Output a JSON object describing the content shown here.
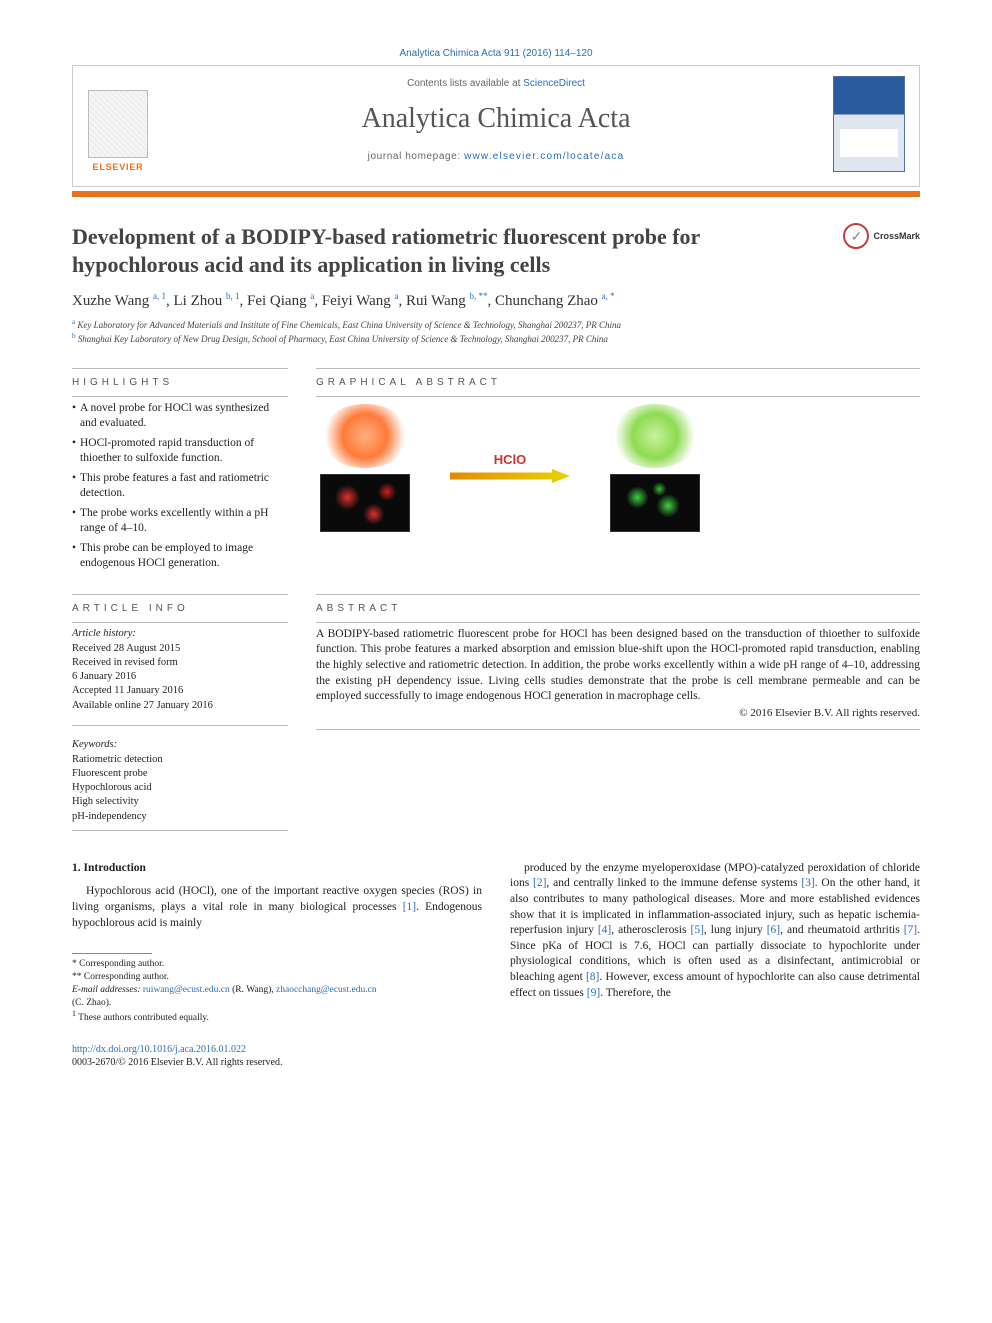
{
  "header": {
    "citation": "Analytica Chimica Acta 911 (2016) 114–120",
    "contents_prefix": "Contents lists available at ",
    "contents_link": "ScienceDirect",
    "journal_name": "Analytica Chimica Acta",
    "homepage_prefix": "journal homepage: ",
    "homepage_link": "www.elsevier.com/locate/aca",
    "elsevier_word": "ELSEVIER",
    "crossmark": "CrossMark"
  },
  "article": {
    "title": "Development of a BODIPY-based ratiometric fluorescent probe for hypochlorous acid and its application in living cells",
    "authors_html": "Xuzhe Wang <span class='sup'>a, 1</span>, Li Zhou <span class='sup'>b, 1</span>, Fei Qiang <span class='sup'>a</span>, Feiyi Wang <span class='sup'>a</span>, Rui Wang <span class='sup'>b, **</span>, Chunchang Zhao <span class='sup'>a, *</span>",
    "affiliations": {
      "a": "Key Laboratory for Advanced Materials and Institute of Fine Chemicals, East China University of Science & Technology, Shanghai 200237, PR China",
      "b": "Shanghai Key Laboratory of New Drug Design, School of Pharmacy, East China University of Science & Technology, Shanghai 200237, PR China"
    }
  },
  "headings": {
    "highlights": "HIGHLIGHTS",
    "graphical": "GRAPHICAL ABSTRACT",
    "article_info": "ARTICLE INFO",
    "abstract": "ABSTRACT",
    "intro": "1. Introduction"
  },
  "highlights": [
    "A novel probe for HOCl was synthesized and evaluated.",
    "HOCl-promoted rapid transduction of thioether to sulfoxide function.",
    "This probe features a fast and ratiometric detection.",
    "The probe works excellently within a pH range of 4–10.",
    "This probe can be employed to image endogenous HOCl generation."
  ],
  "graphical_abstract": {
    "reaction_label": "HClO",
    "left_color": "#ff7a3a",
    "right_color": "#8edb52",
    "arrow_gradient_from": "#e38a00",
    "arrow_gradient_to": "#e8d400"
  },
  "article_info": {
    "history_head": "Article history:",
    "received": "Received 28 August 2015",
    "revised": "Received in revised form",
    "revised_date": "6 January 2016",
    "accepted": "Accepted 11 January 2016",
    "online": "Available online 27 January 2016",
    "keywords_head": "Keywords:",
    "keywords": [
      "Ratiometric detection",
      "Fluorescent probe",
      "Hypochlorous acid",
      "High selectivity",
      "pH-independency"
    ]
  },
  "abstract": {
    "text": "A BODIPY-based ratiometric fluorescent probe for HOCl has been designed based on the transduction of thioether to sulfoxide function. This probe features a marked absorption and emission blue-shift upon the HOCl-promoted rapid transduction, enabling the highly selective and ratiometric detection. In addition, the probe works excellently within a wide pH range of 4–10, addressing the existing pH dependency issue. Living cells studies demonstrate that the probe is cell membrane permeable and can be employed successfully to image endogenous HOCl generation in macrophage cells.",
    "copyright": "© 2016 Elsevier B.V. All rights reserved."
  },
  "body": {
    "p1": "Hypochlorous acid (HOCl), one of the important reactive oxygen species (ROS) in living organisms, plays a vital role in many biological processes [1]. Endogenous hypochlorous acid is mainly",
    "p2": "produced by the enzyme myeloperoxidase (MPO)-catalyzed peroxidation of chloride ions [2], and centrally linked to the immune defense systems [3]. On the other hand, it also contributes to many pathological diseases. More and more established evidences show that it is implicated in inflammation-associated injury, such as hepatic ischemia-reperfusion injury [4], atherosclerosis [5], lung injury [6], and rheumatoid arthritis [7]. Since pKa of HOCl is 7.6, HOCl can partially dissociate to hypochlorite under physiological conditions, which is often used as a disinfectant, antimicrobial or bleaching agent [8]. However, excess amount of hypochlorite can also cause detrimental effect on tissues [9]. Therefore, the"
  },
  "footnotes": {
    "corr1": "* Corresponding author.",
    "corr2": "** Corresponding author.",
    "email_label": "E-mail addresses:",
    "email1": "ruiwang@ecust.edu.cn",
    "email1_owner": "(R. Wang),",
    "email2": "zhaocchang@ecust.edu.cn",
    "email2_owner": "(C. Zhao).",
    "equal": "These authors contributed equally.",
    "equal_marker": "1"
  },
  "doi": {
    "link": "http://dx.doi.org/10.1016/j.aca.2016.01.022",
    "issn_line": "0003-2670/© 2016 Elsevier B.V. All rights reserved."
  },
  "colors": {
    "link": "#2a6eb8",
    "accent": "#e9711c",
    "text": "#222222",
    "rule": "#bbbbbb"
  }
}
